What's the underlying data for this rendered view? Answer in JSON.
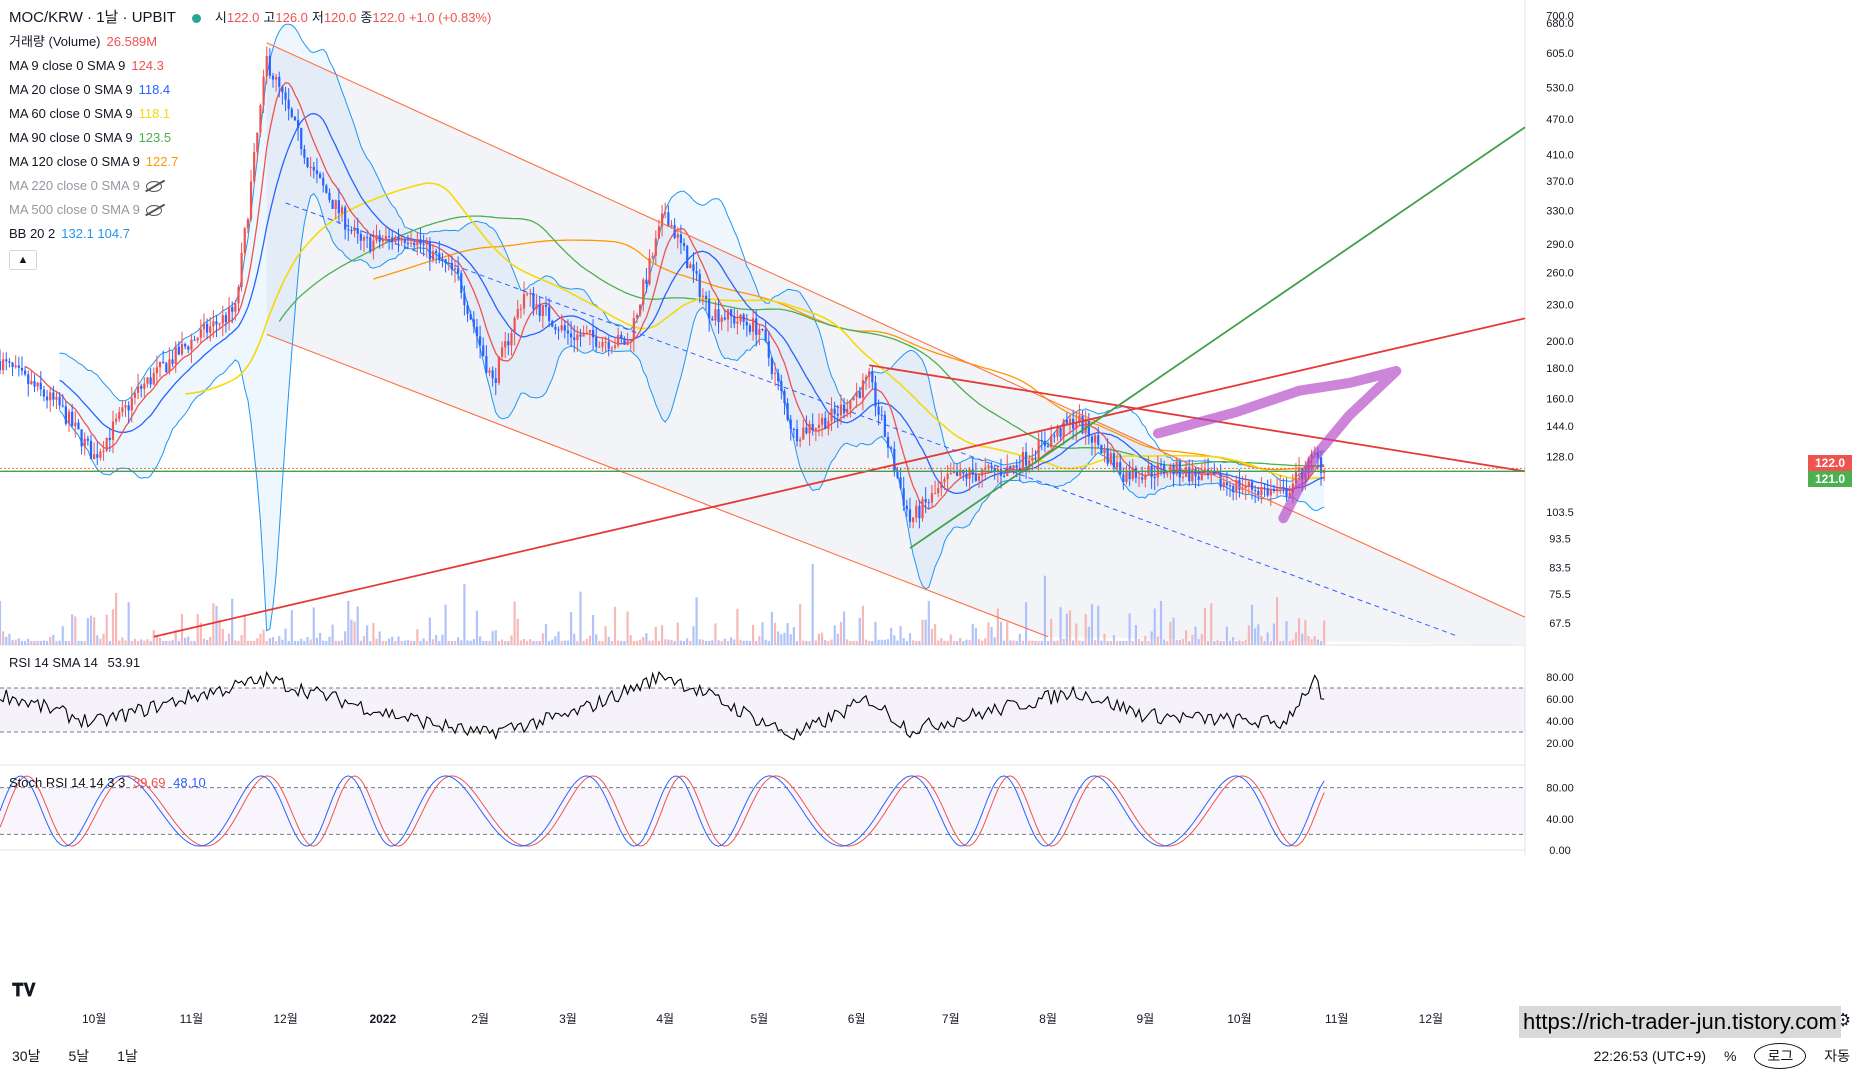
{
  "header": {
    "symbol": "MOC/KRW · 1날 · UPBIT",
    "ohlc": [
      {
        "k": "시",
        "v": "122.0"
      },
      {
        "k": "고",
        "v": "126.0"
      },
      {
        "k": "저",
        "v": "120.0"
      },
      {
        "k": "종",
        "v": "122.0"
      },
      {
        "k": "",
        "v": "+1.0 (+0.83%)"
      }
    ]
  },
  "legend": [
    {
      "label": "거래량 (Volume)",
      "value": "26.589M",
      "color": "#ef5350",
      "hidden": false
    },
    {
      "label": "MA 9 close 0 SMA 9",
      "value": "124.3",
      "color": "#ef5350",
      "hidden": false
    },
    {
      "label": "MA 20 close 0 SMA 9",
      "value": "118.4",
      "color": "#2962ff",
      "hidden": false
    },
    {
      "label": "MA 60 close 0 SMA 9",
      "value": "118.1",
      "color": "#f5d90a",
      "hidden": false
    },
    {
      "label": "MA 90 close 0 SMA 9",
      "value": "123.5",
      "color": "#4caf50",
      "hidden": false
    },
    {
      "label": "MA 120 close 0 SMA 9",
      "value": "122.7",
      "color": "#ff9800",
      "hidden": false
    },
    {
      "label": "MA 220 close 0 SMA 9",
      "value": "",
      "color": "#9598a1",
      "hidden": true
    },
    {
      "label": "MA 500 close 0 SMA 9",
      "value": "",
      "color": "#9598a1",
      "hidden": true
    },
    {
      "label": "BB 20 2",
      "value": "132.1  104.7",
      "color": "#2196f3",
      "hidden": false
    }
  ],
  "rsi_legend": {
    "label": "RSI 14 SMA 14",
    "value": "53.91"
  },
  "stoch_legend": {
    "label": "Stoch RSI 14 14 3 3",
    "k": "39.69",
    "d": "48.10"
  },
  "price_axis": [
    "700.0",
    "680.0",
    "605.0",
    "530.0",
    "470.0",
    "410.0",
    "370.0",
    "330.0",
    "290.0",
    "260.0",
    "230.0",
    "200.0",
    "180.0",
    "160.0",
    "144.0",
    "128.0",
    "103.5",
    "93.5",
    "83.5",
    "75.5",
    "67.5"
  ],
  "price_tags": [
    {
      "label": "122.0",
      "color": "#ef5350"
    },
    {
      "label": "121.0",
      "color": "#4caf50"
    }
  ],
  "rsi_axis": [
    "80.00",
    "60.00",
    "40.00",
    "20.00"
  ],
  "stoch_axis": [
    "80.00",
    "40.00",
    "0.00"
  ],
  "time_axis": [
    "10월",
    "11월",
    "12월",
    "2022",
    "2월",
    "3월",
    "4월",
    "5월",
    "6월",
    "7월",
    "8월",
    "9월",
    "10월",
    "11월",
    "12월"
  ],
  "footer": {
    "timeframes": [
      "30날",
      "5날",
      "1날"
    ],
    "clock": "22:26:53 (UTC+9)",
    "percent": "%",
    "log": "로그",
    "auto": "자동"
  },
  "watermark": "https://rich-trader-jun.tistory.com",
  "colors": {
    "up": "#ef5350",
    "down": "#2962ff",
    "ma9": "#ef5350",
    "ma20": "#2962ff",
    "ma60": "#f5d90a",
    "ma90": "#4caf50",
    "ma120": "#ff9800",
    "bb": "#2196f3",
    "rsi": "#000000",
    "stochK": "#2962ff",
    "stochD": "#ef5350"
  },
  "chart_data": {
    "type": "candlestick",
    "title": "MOC/KRW · 1날 · UPBIT",
    "y_scale": "log",
    "ylim": [
      62,
      720
    ],
    "price_path": [
      {
        "date": "2021-09-01",
        "close": 185
      },
      {
        "date": "2021-09-20",
        "close": 155
      },
      {
        "date": "2021-10-01",
        "close": 128
      },
      {
        "date": "2021-10-15",
        "close": 165
      },
      {
        "date": "2021-11-01",
        "close": 200
      },
      {
        "date": "2021-11-15",
        "close": 225
      },
      {
        "date": "2021-11-25",
        "close": 590
      },
      {
        "date": "2021-12-10",
        "close": 380
      },
      {
        "date": "2021-12-25",
        "close": 290
      },
      {
        "date": "2022-01-10",
        "close": 300
      },
      {
        "date": "2022-01-25",
        "close": 255
      },
      {
        "date": "2022-02-05",
        "close": 170
      },
      {
        "date": "2022-02-15",
        "close": 240
      },
      {
        "date": "2022-03-01",
        "close": 205
      },
      {
        "date": "2022-03-20",
        "close": 198
      },
      {
        "date": "2022-04-01",
        "close": 330
      },
      {
        "date": "2022-04-15",
        "close": 225
      },
      {
        "date": "2022-05-01",
        "close": 210
      },
      {
        "date": "2022-05-12",
        "close": 140
      },
      {
        "date": "2022-05-25",
        "close": 150
      },
      {
        "date": "2022-06-05",
        "close": 172
      },
      {
        "date": "2022-06-18",
        "close": 100
      },
      {
        "date": "2022-07-01",
        "close": 118
      },
      {
        "date": "2022-07-20",
        "close": 122
      },
      {
        "date": "2022-08-10",
        "close": 148
      },
      {
        "date": "2022-08-25",
        "close": 120
      },
      {
        "date": "2022-09-10",
        "close": 122
      },
      {
        "date": "2022-09-25",
        "close": 116
      },
      {
        "date": "2022-10-15",
        "close": 111
      },
      {
        "date": "2022-10-25",
        "close": 128
      },
      {
        "date": "2022-10-28",
        "close": 122
      }
    ],
    "rsi_path": [
      {
        "date": "2021-09-01",
        "v": 65
      },
      {
        "date": "2021-10-01",
        "v": 38
      },
      {
        "date": "2021-11-01",
        "v": 62
      },
      {
        "date": "2021-11-25",
        "v": 78
      },
      {
        "date": "2022-01-01",
        "v": 48
      },
      {
        "date": "2022-02-01",
        "v": 28
      },
      {
        "date": "2022-03-01",
        "v": 45
      },
      {
        "date": "2022-04-01",
        "v": 82
      },
      {
        "date": "2022-05-12",
        "v": 26
      },
      {
        "date": "2022-06-05",
        "v": 60
      },
      {
        "date": "2022-06-18",
        "v": 32
      },
      {
        "date": "2022-08-10",
        "v": 67
      },
      {
        "date": "2022-09-01",
        "v": 45
      },
      {
        "date": "2022-10-15",
        "v": 38
      },
      {
        "date": "2022-10-25",
        "v": 78
      },
      {
        "date": "2022-10-28",
        "v": 54
      }
    ],
    "rsi_levels": [
      70,
      30
    ],
    "stoch_levels": [
      80,
      20
    ],
    "annotation_lines": [
      {
        "name": "descending channel top",
        "color": "#ff7043",
        "from": {
          "date": "2021-11-25",
          "price": 630
        },
        "to": {
          "date": "2022-12-31",
          "price": 69
        }
      },
      {
        "name": "descending channel bottom",
        "color": "#ff7043",
        "from": {
          "date": "2021-11-25",
          "price": 205
        },
        "to": {
          "date": "2022-08-01",
          "price": 64
        }
      },
      {
        "name": "ascending support",
        "color": "#e53935",
        "from": {
          "date": "2021-10-20",
          "price": 64
        },
        "to": {
          "date": "2022-12-31",
          "price": 218
        }
      },
      {
        "name": "descending resistance",
        "color": "#e53935",
        "from": {
          "date": "2022-06-05",
          "price": 182
        },
        "to": {
          "date": "2022-12-31",
          "price": 121
        }
      },
      {
        "name": "green target line",
        "color": "#43a047",
        "from": {
          "date": "2022-06-18",
          "price": 90
        },
        "to": {
          "date": "2022-12-31",
          "price": 455
        }
      },
      {
        "name": "horizontal level",
        "color": "#43a047",
        "price": 121.0
      }
    ]
  }
}
